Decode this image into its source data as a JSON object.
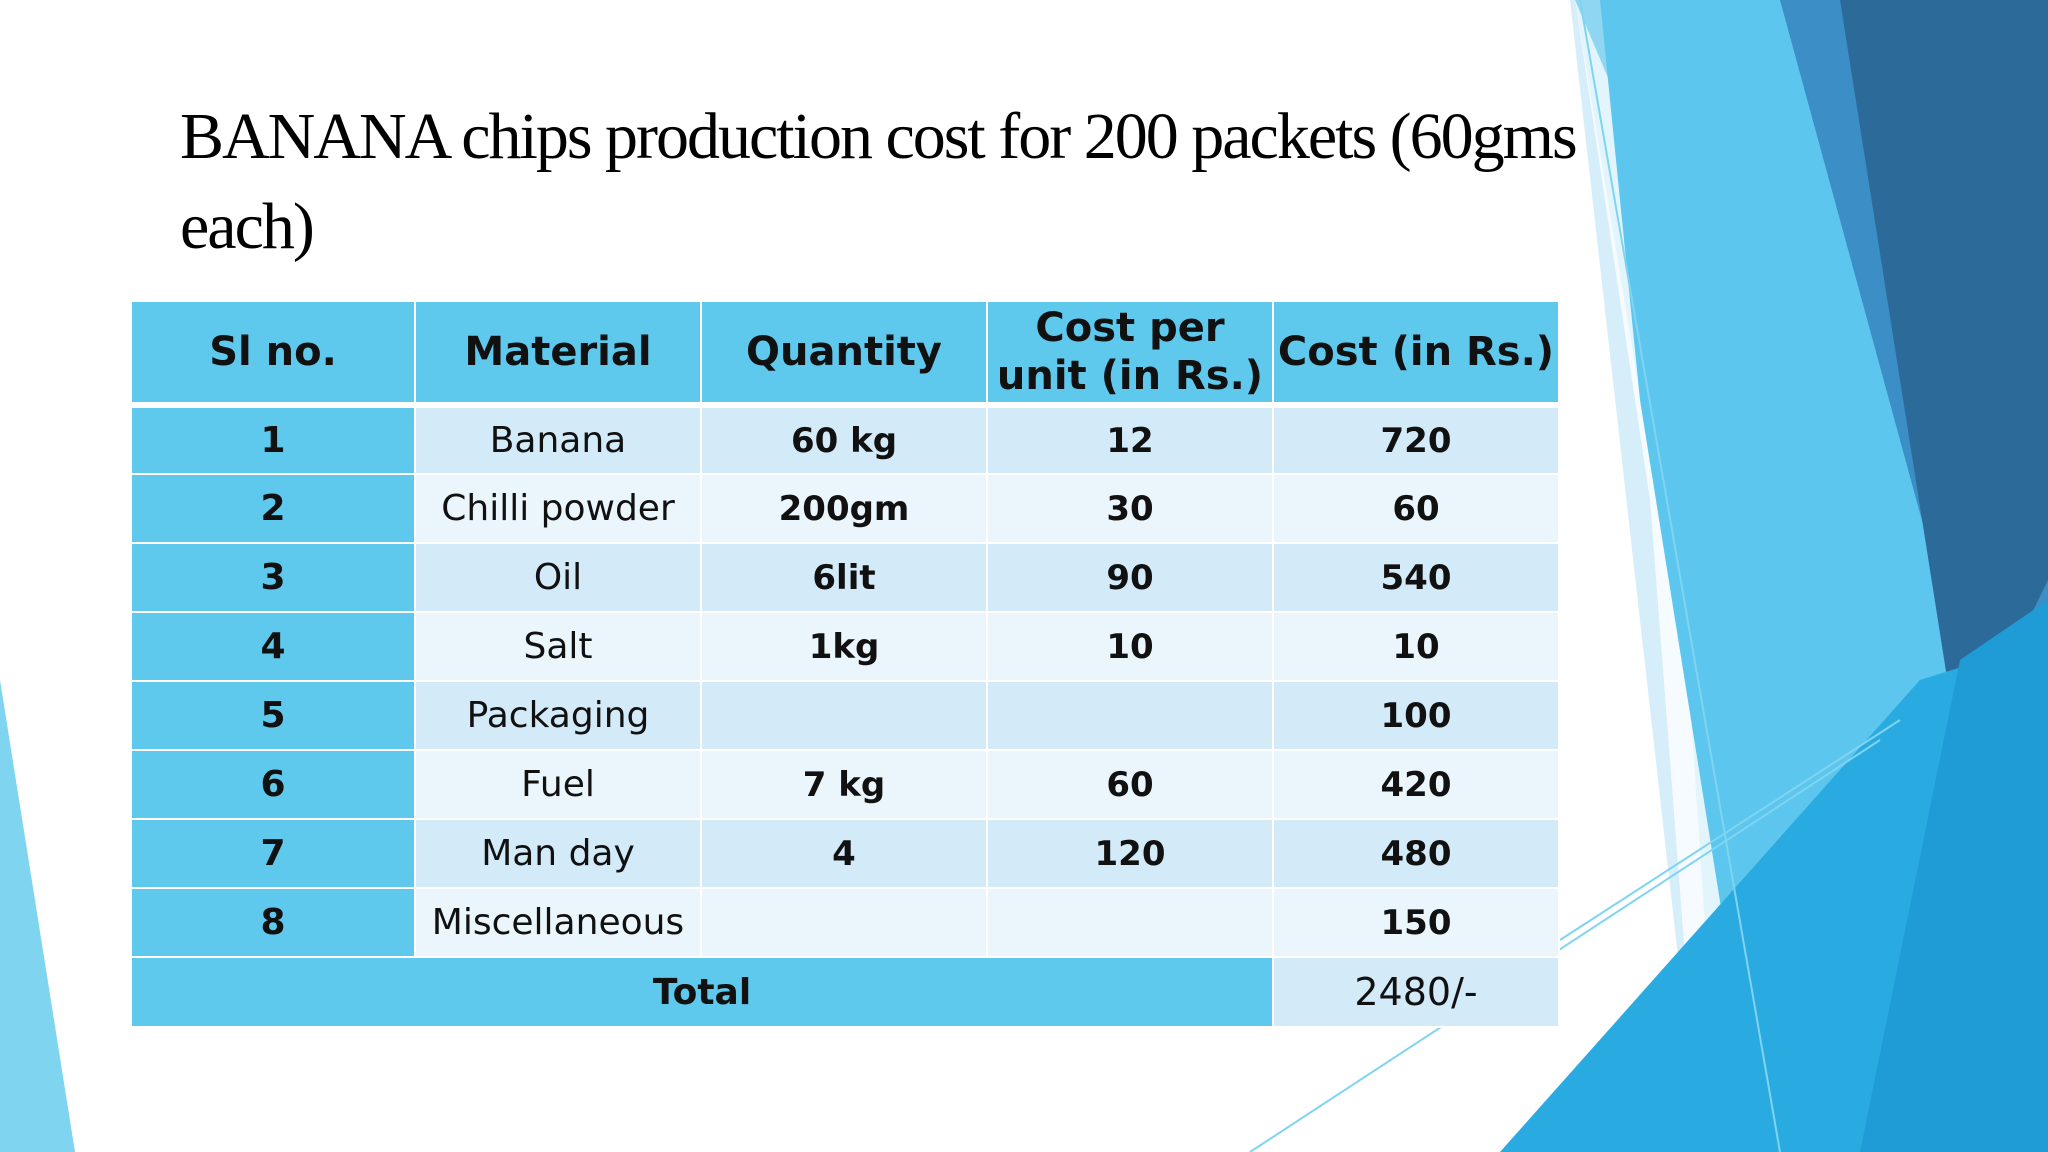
{
  "slide": {
    "title": "BANANA chips production cost for 200 packets (60gms each)"
  },
  "table": {
    "headers": [
      "Sl no.",
      "Material",
      "Quantity",
      "Cost per unit (in Rs.)",
      "Cost (in Rs.)"
    ],
    "rows": [
      {
        "sl": "1",
        "material": "Banana",
        "quantity": "60 kg",
        "unit_cost": "12",
        "cost": "720"
      },
      {
        "sl": "2",
        "material": "Chilli powder",
        "quantity": "200gm",
        "unit_cost": "30",
        "cost": "60"
      },
      {
        "sl": "3",
        "material": "Oil",
        "quantity": "6lit",
        "unit_cost": "90",
        "cost": "540"
      },
      {
        "sl": "4",
        "material": "Salt",
        "quantity": "1kg",
        "unit_cost": "10",
        "cost": "10"
      },
      {
        "sl": "5",
        "material": "Packaging",
        "quantity": "",
        "unit_cost": "",
        "cost": "100"
      },
      {
        "sl": "6",
        "material": "Fuel",
        "quantity": "7 kg",
        "unit_cost": "60",
        "cost": "420"
      },
      {
        "sl": "7",
        "material": "Man day",
        "quantity": "4",
        "unit_cost": "120",
        "cost": "480"
      },
      {
        "sl": "8",
        "material": "Miscellaneous",
        "quantity": "",
        "unit_cost": "",
        "cost": "150"
      }
    ],
    "total": {
      "label": "Total",
      "value": "2480/-"
    }
  },
  "colors": {
    "header_fill": "#5ec9ec",
    "row_light": "#d3eaf9",
    "row_lighter": "#eaf5fc",
    "accent_dark": "#2b6a99",
    "accent_mid": "#29abe2",
    "accent_light": "#7fd4f0"
  }
}
